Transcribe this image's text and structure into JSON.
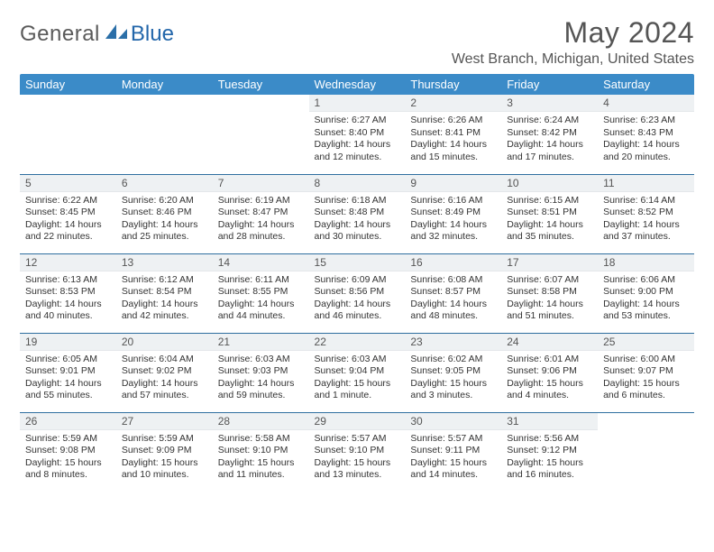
{
  "logo": {
    "text1": "General",
    "text2": "Blue"
  },
  "title": "May 2024",
  "location": "West Branch, Michigan, United States",
  "colors": {
    "header_bg": "#3b8bc8",
    "header_text": "#ffffff",
    "row_border": "#2f6fa0",
    "daynum_bg": "#eef1f3",
    "logo_gray": "#5a5a5a",
    "logo_blue": "#2266aa"
  },
  "weekdays": [
    "Sunday",
    "Monday",
    "Tuesday",
    "Wednesday",
    "Thursday",
    "Friday",
    "Saturday"
  ],
  "weeks": [
    [
      null,
      null,
      null,
      {
        "n": "1",
        "sr": "6:27 AM",
        "ss": "8:40 PM",
        "dl": "14 hours and 12 minutes."
      },
      {
        "n": "2",
        "sr": "6:26 AM",
        "ss": "8:41 PM",
        "dl": "14 hours and 15 minutes."
      },
      {
        "n": "3",
        "sr": "6:24 AM",
        "ss": "8:42 PM",
        "dl": "14 hours and 17 minutes."
      },
      {
        "n": "4",
        "sr": "6:23 AM",
        "ss": "8:43 PM",
        "dl": "14 hours and 20 minutes."
      }
    ],
    [
      {
        "n": "5",
        "sr": "6:22 AM",
        "ss": "8:45 PM",
        "dl": "14 hours and 22 minutes."
      },
      {
        "n": "6",
        "sr": "6:20 AM",
        "ss": "8:46 PM",
        "dl": "14 hours and 25 minutes."
      },
      {
        "n": "7",
        "sr": "6:19 AM",
        "ss": "8:47 PM",
        "dl": "14 hours and 28 minutes."
      },
      {
        "n": "8",
        "sr": "6:18 AM",
        "ss": "8:48 PM",
        "dl": "14 hours and 30 minutes."
      },
      {
        "n": "9",
        "sr": "6:16 AM",
        "ss": "8:49 PM",
        "dl": "14 hours and 32 minutes."
      },
      {
        "n": "10",
        "sr": "6:15 AM",
        "ss": "8:51 PM",
        "dl": "14 hours and 35 minutes."
      },
      {
        "n": "11",
        "sr": "6:14 AM",
        "ss": "8:52 PM",
        "dl": "14 hours and 37 minutes."
      }
    ],
    [
      {
        "n": "12",
        "sr": "6:13 AM",
        "ss": "8:53 PM",
        "dl": "14 hours and 40 minutes."
      },
      {
        "n": "13",
        "sr": "6:12 AM",
        "ss": "8:54 PM",
        "dl": "14 hours and 42 minutes."
      },
      {
        "n": "14",
        "sr": "6:11 AM",
        "ss": "8:55 PM",
        "dl": "14 hours and 44 minutes."
      },
      {
        "n": "15",
        "sr": "6:09 AM",
        "ss": "8:56 PM",
        "dl": "14 hours and 46 minutes."
      },
      {
        "n": "16",
        "sr": "6:08 AM",
        "ss": "8:57 PM",
        "dl": "14 hours and 48 minutes."
      },
      {
        "n": "17",
        "sr": "6:07 AM",
        "ss": "8:58 PM",
        "dl": "14 hours and 51 minutes."
      },
      {
        "n": "18",
        "sr": "6:06 AM",
        "ss": "9:00 PM",
        "dl": "14 hours and 53 minutes."
      }
    ],
    [
      {
        "n": "19",
        "sr": "6:05 AM",
        "ss": "9:01 PM",
        "dl": "14 hours and 55 minutes."
      },
      {
        "n": "20",
        "sr": "6:04 AM",
        "ss": "9:02 PM",
        "dl": "14 hours and 57 minutes."
      },
      {
        "n": "21",
        "sr": "6:03 AM",
        "ss": "9:03 PM",
        "dl": "14 hours and 59 minutes."
      },
      {
        "n": "22",
        "sr": "6:03 AM",
        "ss": "9:04 PM",
        "dl": "15 hours and 1 minute."
      },
      {
        "n": "23",
        "sr": "6:02 AM",
        "ss": "9:05 PM",
        "dl": "15 hours and 3 minutes."
      },
      {
        "n": "24",
        "sr": "6:01 AM",
        "ss": "9:06 PM",
        "dl": "15 hours and 4 minutes."
      },
      {
        "n": "25",
        "sr": "6:00 AM",
        "ss": "9:07 PM",
        "dl": "15 hours and 6 minutes."
      }
    ],
    [
      {
        "n": "26",
        "sr": "5:59 AM",
        "ss": "9:08 PM",
        "dl": "15 hours and 8 minutes."
      },
      {
        "n": "27",
        "sr": "5:59 AM",
        "ss": "9:09 PM",
        "dl": "15 hours and 10 minutes."
      },
      {
        "n": "28",
        "sr": "5:58 AM",
        "ss": "9:10 PM",
        "dl": "15 hours and 11 minutes."
      },
      {
        "n": "29",
        "sr": "5:57 AM",
        "ss": "9:10 PM",
        "dl": "15 hours and 13 minutes."
      },
      {
        "n": "30",
        "sr": "5:57 AM",
        "ss": "9:11 PM",
        "dl": "15 hours and 14 minutes."
      },
      {
        "n": "31",
        "sr": "5:56 AM",
        "ss": "9:12 PM",
        "dl": "15 hours and 16 minutes."
      },
      null
    ]
  ],
  "labels": {
    "sunrise": "Sunrise:",
    "sunset": "Sunset:",
    "daylight": "Daylight:"
  }
}
